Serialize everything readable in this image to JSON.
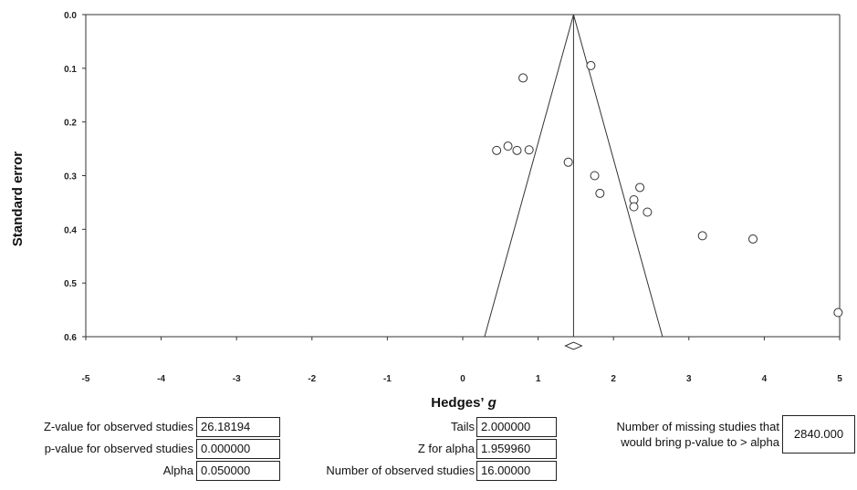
{
  "chart_data": {
    "type": "scatter",
    "title": "",
    "xlabel": "Hedges’",
    "xlabel_italic": "g",
    "ylabel": "Standard error",
    "xlim": [
      -5,
      5
    ],
    "ylim": [
      0.6,
      0.0
    ],
    "y_inverted": true,
    "x_ticks": [
      "-5",
      "-4",
      "-3",
      "-2",
      "-1",
      "0",
      "1",
      "2",
      "3",
      "4",
      "5"
    ],
    "y_ticks": [
      "0.0",
      "0.1",
      "0.2",
      "0.3",
      "0.4",
      "0.5",
      "0.6"
    ],
    "points": [
      {
        "x": 1.7,
        "y": 0.095
      },
      {
        "x": 0.8,
        "y": 0.118
      },
      {
        "x": 0.45,
        "y": 0.253
      },
      {
        "x": 0.6,
        "y": 0.245
      },
      {
        "x": 0.72,
        "y": 0.253
      },
      {
        "x": 0.88,
        "y": 0.252
      },
      {
        "x": 1.4,
        "y": 0.275
      },
      {
        "x": 1.75,
        "y": 0.3
      },
      {
        "x": 1.82,
        "y": 0.333
      },
      {
        "x": 2.35,
        "y": 0.322
      },
      {
        "x": 2.27,
        "y": 0.345
      },
      {
        "x": 2.27,
        "y": 0.358
      },
      {
        "x": 2.45,
        "y": 0.368
      },
      {
        "x": 3.18,
        "y": 0.412
      },
      {
        "x": 3.85,
        "y": 0.418
      },
      {
        "x": 4.98,
        "y": 0.555
      }
    ],
    "combined_effect": 1.47,
    "funnel": {
      "apex": [
        1.47,
        0.0
      ],
      "base_left": [
        0.29,
        0.6
      ],
      "base_right": [
        2.65,
        0.6
      ]
    }
  },
  "stats": {
    "z_obs_label": "Z-value for observed studies",
    "z_obs_value": "26.18194",
    "p_obs_label": "p-value for observed studies",
    "p_obs_value": "0.000000",
    "alpha_label": "Alpha",
    "alpha_value": "0.050000",
    "tails_label": "Tails",
    "tails_value": "2.000000",
    "z_alpha_label": "Z for alpha",
    "z_alpha_value": "1.959960",
    "n_obs_label": "Number of observed studies",
    "n_obs_value": "16.00000",
    "missing_label_1": "Number of missing studies that",
    "missing_label_2": "would bring p-value to > alpha",
    "missing_value": "2840.000"
  }
}
